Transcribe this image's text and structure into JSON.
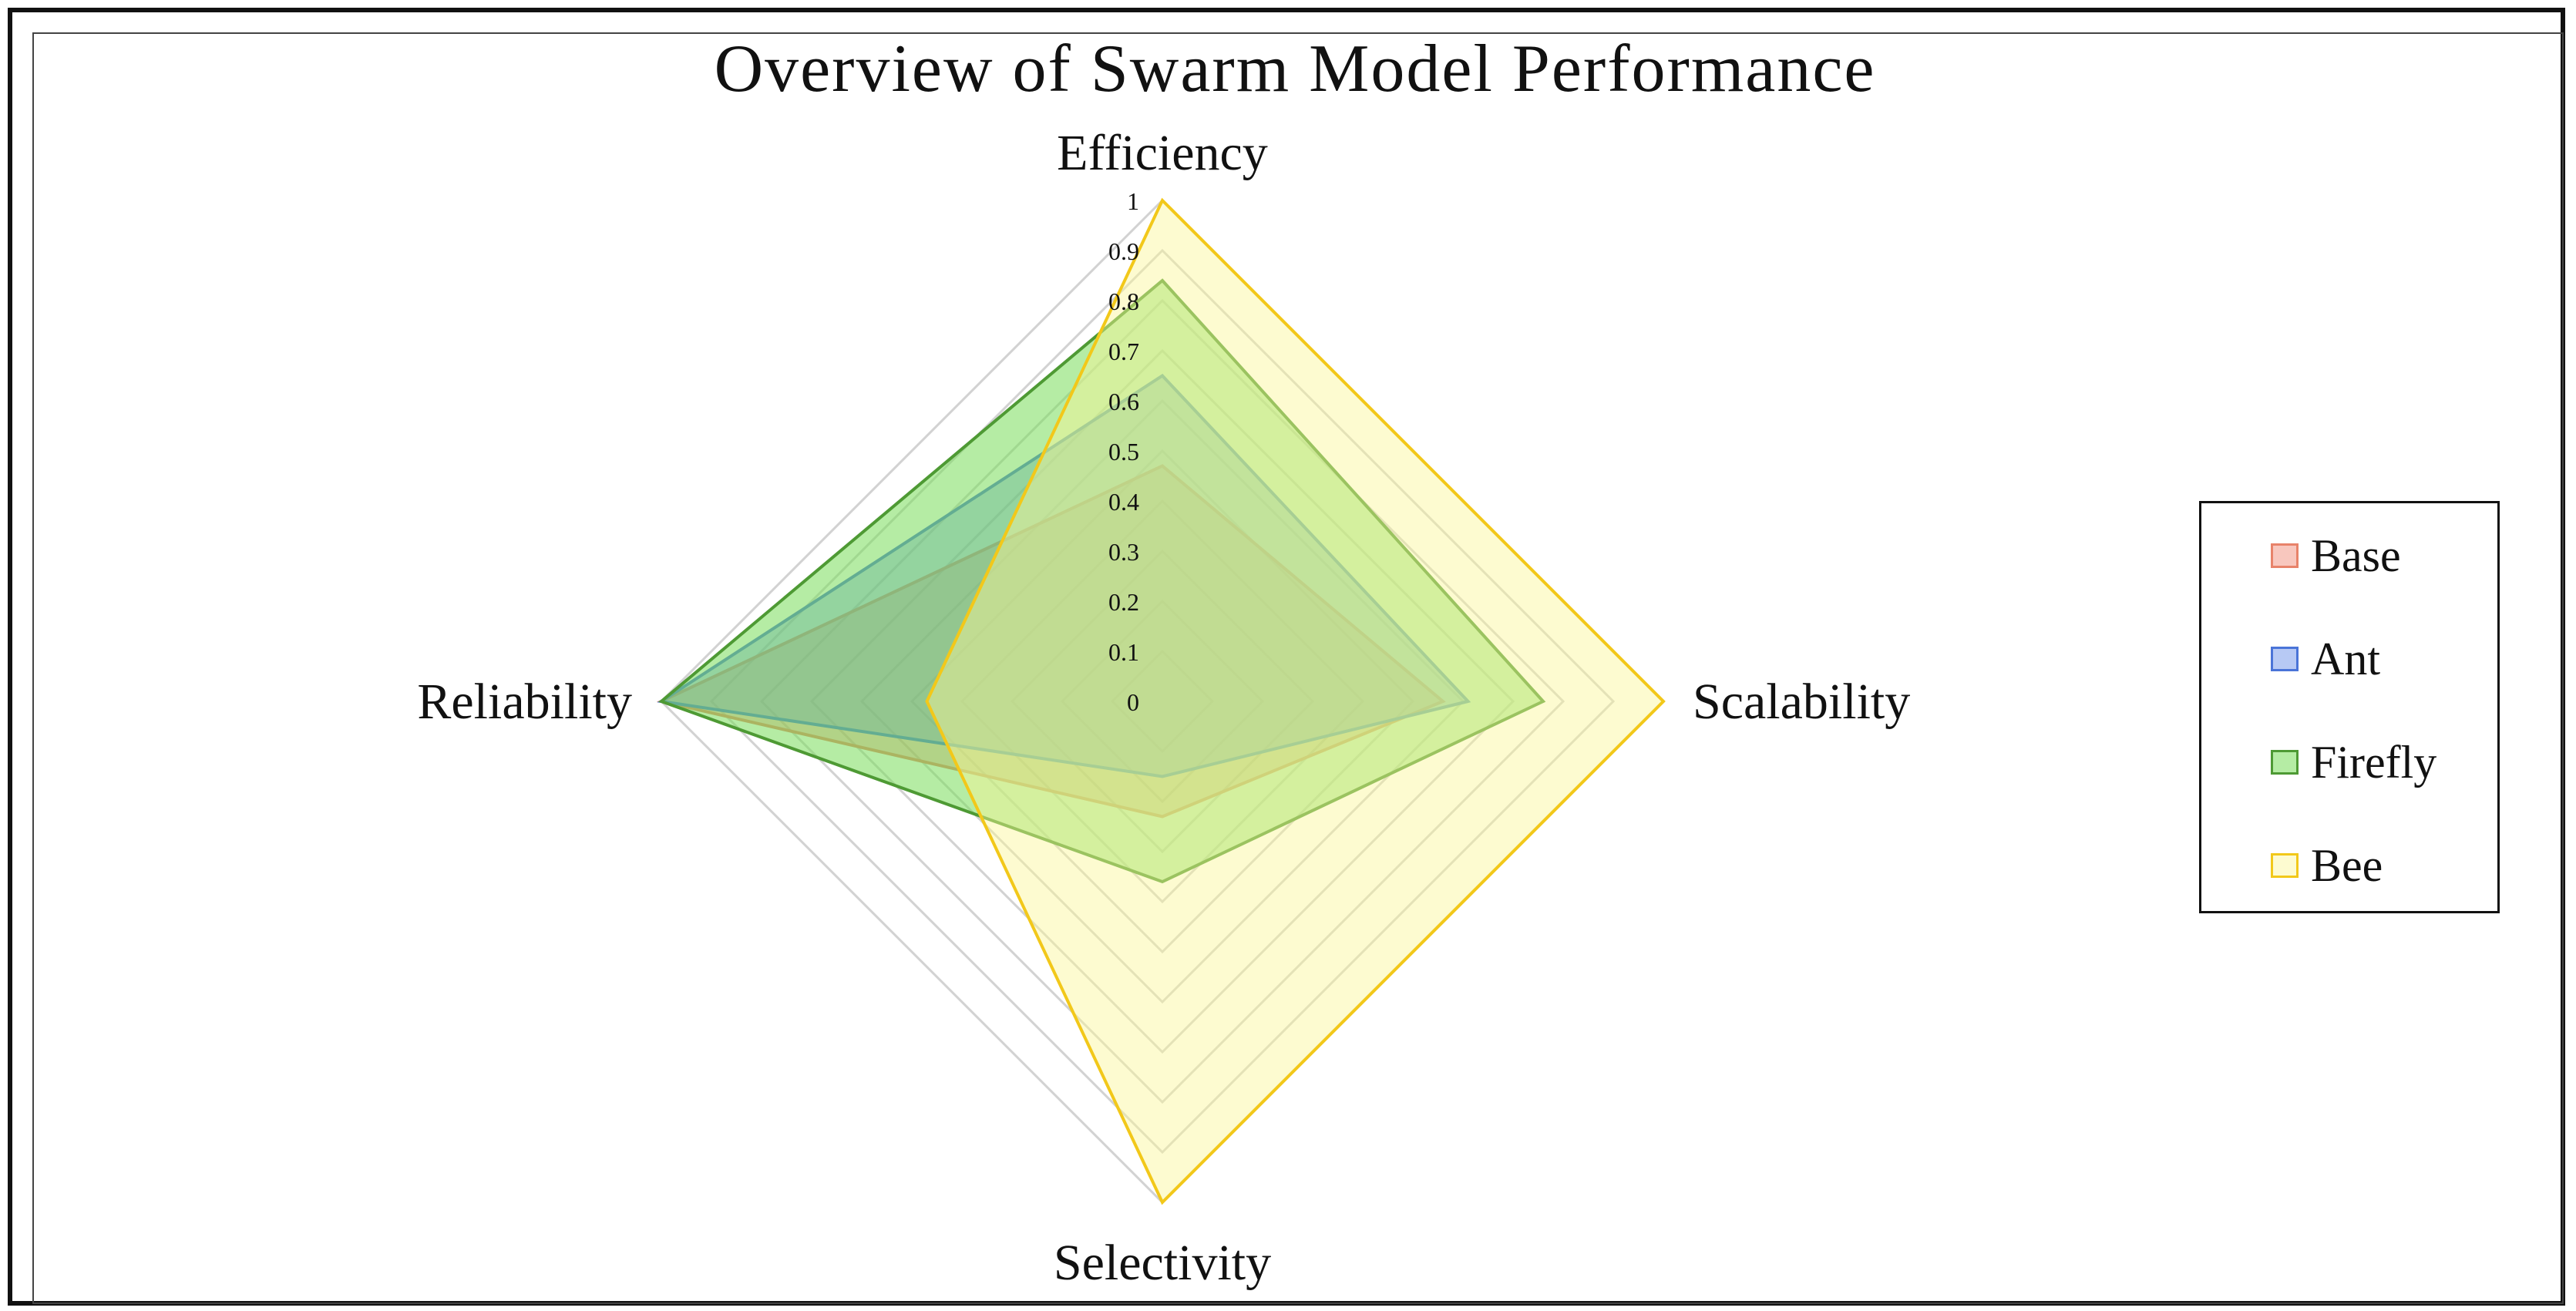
{
  "chart_data": {
    "type": "radar",
    "title": "Overview of Swarm Model Performance",
    "axes": [
      "Efficiency",
      "Scalability",
      "Selectivity",
      "Reliability"
    ],
    "scale": {
      "min": 0,
      "max": 1,
      "step": 0.1,
      "tick_labels": [
        "0",
        "0.1",
        "0.2",
        "0.3",
        "0.4",
        "0.5",
        "0.6",
        "0.7",
        "0.8",
        "0.9",
        "1"
      ]
    },
    "series": [
      {
        "name": "Base",
        "values": [
          0.47,
          0.56,
          0.23,
          1.0
        ],
        "color": "#e8836a",
        "fill": "rgba(240,130,110,0.45)"
      },
      {
        "name": "Ant",
        "values": [
          0.65,
          0.61,
          0.15,
          1.0
        ],
        "color": "#4a74d8",
        "fill": "rgba(95,135,230,0.45)"
      },
      {
        "name": "Firefly",
        "values": [
          0.84,
          0.76,
          0.36,
          1.0
        ],
        "color": "#4e9a34",
        "fill": "rgba(120,220,90,0.55)"
      },
      {
        "name": "Bee",
        "values": [
          1.0,
          1.0,
          1.0,
          0.47
        ],
        "color": "#f2c81a",
        "fill": "rgba(250,246,150,0.45)"
      }
    ],
    "legend": {
      "position": "right"
    }
  }
}
